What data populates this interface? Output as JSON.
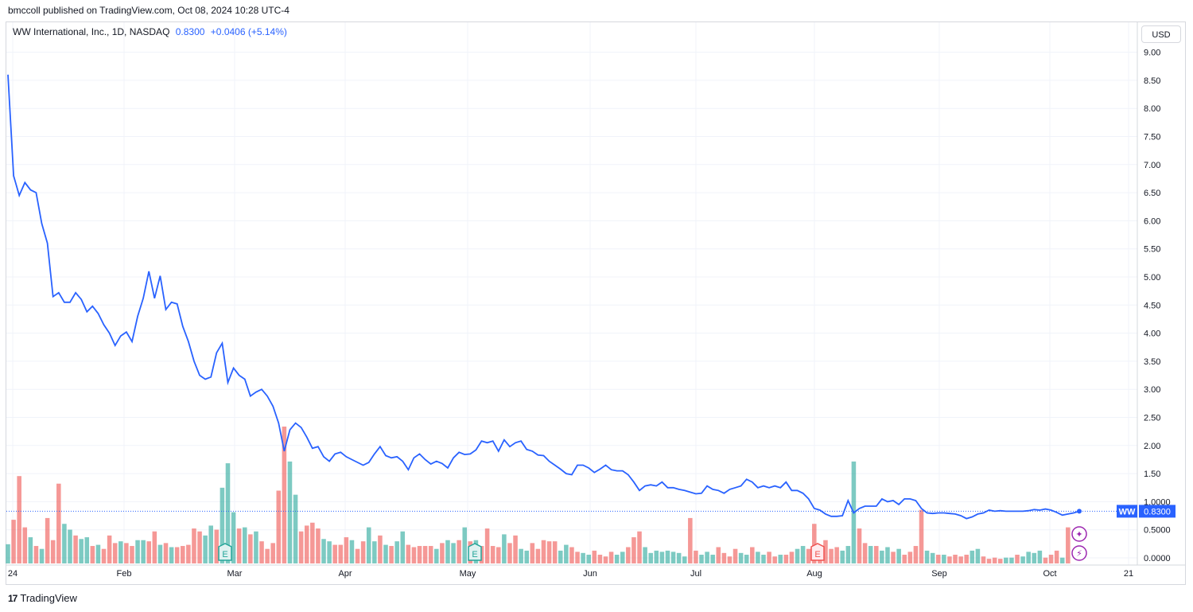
{
  "publisher_line": "bmccoll published on TradingView.com, Oct 08, 2024 10:28 UTC-4",
  "legend": {
    "symbol": "WW International, Inc., 1D, NASDAQ",
    "price": "0.8300",
    "change": "+0.0406 (+5.14%)"
  },
  "currency_button": "USD",
  "last_price_label": {
    "ticker": "WW",
    "price": "0.8300"
  },
  "footer_brand": "TradingView",
  "footer_logo": "17",
  "colors": {
    "line": "#2962ff",
    "vol_up": "#26a69a",
    "vol_down": "#ef5350",
    "grid": "#f0f3fa"
  },
  "chart_data": {
    "type": "line",
    "title": "",
    "xlabel": "",
    "ylabel": "",
    "ylim": [
      0,
      9.0
    ],
    "y_ticks": [
      "9.00",
      "8.50",
      "8.00",
      "7.50",
      "7.00",
      "6.50",
      "6.00",
      "5.50",
      "5.00",
      "4.50",
      "4.00",
      "3.50",
      "3.00",
      "2.50",
      "2.00",
      "1.50",
      "1.0000",
      "0.5000",
      "0.0000"
    ],
    "x_ticks": [
      "24",
      "Feb",
      "Mar",
      "Apr",
      "May",
      "Jun",
      "Jul",
      "Aug",
      "Sep",
      "Oct",
      "21"
    ],
    "series": [
      {
        "values": [
          8.6,
          6.8,
          6.45,
          6.68,
          6.55,
          6.5,
          5.95,
          5.6,
          4.65,
          4.72,
          4.55,
          4.55,
          4.72,
          4.6,
          4.38,
          4.48,
          4.35,
          4.15,
          4.0,
          3.78,
          3.95,
          4.02,
          3.85,
          4.3,
          4.62,
          5.1,
          4.62,
          5.02,
          4.42,
          4.55,
          4.52,
          4.12,
          3.85,
          3.5,
          3.25,
          3.18,
          3.22,
          3.65,
          3.82,
          3.12,
          3.38,
          3.25,
          3.18,
          2.88,
          2.95,
          3.0,
          2.88,
          2.7,
          2.4,
          1.9,
          2.28,
          2.4,
          2.32,
          2.15,
          1.95,
          1.98,
          1.8,
          1.72,
          1.85,
          1.88,
          1.8,
          1.75,
          1.7,
          1.65,
          1.7,
          1.85,
          1.98,
          1.82,
          1.78,
          1.8,
          1.72,
          1.57,
          1.78,
          1.85,
          1.75,
          1.67,
          1.72,
          1.68,
          1.6,
          1.78,
          1.88,
          1.84,
          1.85,
          1.92,
          2.08,
          2.05,
          2.08,
          1.9,
          2.1,
          1.98,
          2.05,
          2.08,
          1.93,
          1.9,
          1.83,
          1.82,
          1.72,
          1.65,
          1.58,
          1.5,
          1.48,
          1.65,
          1.65,
          1.6,
          1.52,
          1.58,
          1.65,
          1.57,
          1.55,
          1.55,
          1.48,
          1.35,
          1.2,
          1.28,
          1.3,
          1.28,
          1.35,
          1.25,
          1.25,
          1.22,
          1.2,
          1.17,
          1.14,
          1.15,
          1.28,
          1.22,
          1.2,
          1.15,
          1.22,
          1.25,
          1.28,
          1.4,
          1.35,
          1.25,
          1.28,
          1.25,
          1.28,
          1.25,
          1.35,
          1.2,
          1.2,
          1.15,
          1.05,
          0.88,
          0.85,
          0.78,
          0.74,
          0.74,
          0.75,
          1.02,
          0.8,
          0.88,
          0.92,
          0.92,
          0.92,
          1.05,
          1.0,
          1.02,
          0.95,
          1.05,
          1.05,
          1.02,
          0.88,
          0.8,
          0.79,
          0.8,
          0.8,
          0.79,
          0.78,
          0.75,
          0.7,
          0.73,
          0.78,
          0.8,
          0.85,
          0.83,
          0.84,
          0.83,
          0.83,
          0.83,
          0.83,
          0.84,
          0.86,
          0.85,
          0.87,
          0.85,
          0.81,
          0.76,
          0.78,
          0.8,
          0.83
        ]
      }
    ],
    "volume": [
      {
        "v": 0.33,
        "c": "up"
      },
      {
        "v": 0.75,
        "c": "down"
      },
      {
        "v": 1.5,
        "c": "down"
      },
      {
        "v": 0.62,
        "c": "down"
      },
      {
        "v": 0.45,
        "c": "up"
      },
      {
        "v": 0.3,
        "c": "down"
      },
      {
        "v": 0.25,
        "c": "up"
      },
      {
        "v": 0.78,
        "c": "down"
      },
      {
        "v": 0.4,
        "c": "down"
      },
      {
        "v": 1.37,
        "c": "down"
      },
      {
        "v": 0.68,
        "c": "up"
      },
      {
        "v": 0.58,
        "c": "up"
      },
      {
        "v": 0.48,
        "c": "down"
      },
      {
        "v": 0.42,
        "c": "up"
      },
      {
        "v": 0.45,
        "c": "up"
      },
      {
        "v": 0.3,
        "c": "down"
      },
      {
        "v": 0.32,
        "c": "up"
      },
      {
        "v": 0.25,
        "c": "down"
      },
      {
        "v": 0.48,
        "c": "down"
      },
      {
        "v": 0.35,
        "c": "down"
      },
      {
        "v": 0.38,
        "c": "up"
      },
      {
        "v": 0.35,
        "c": "down"
      },
      {
        "v": 0.3,
        "c": "down"
      },
      {
        "v": 0.4,
        "c": "up"
      },
      {
        "v": 0.4,
        "c": "up"
      },
      {
        "v": 0.38,
        "c": "down"
      },
      {
        "v": 0.55,
        "c": "down"
      },
      {
        "v": 0.32,
        "c": "up"
      },
      {
        "v": 0.35,
        "c": "down"
      },
      {
        "v": 0.28,
        "c": "up"
      },
      {
        "v": 0.28,
        "c": "down"
      },
      {
        "v": 0.3,
        "c": "down"
      },
      {
        "v": 0.32,
        "c": "down"
      },
      {
        "v": 0.6,
        "c": "down"
      },
      {
        "v": 0.55,
        "c": "down"
      },
      {
        "v": 0.48,
        "c": "up"
      },
      {
        "v": 0.65,
        "c": "up"
      },
      {
        "v": 0.58,
        "c": "down"
      },
      {
        "v": 1.3,
        "c": "up"
      },
      {
        "v": 1.72,
        "c": "up"
      },
      {
        "v": 0.88,
        "c": "up"
      },
      {
        "v": 0.6,
        "c": "down"
      },
      {
        "v": 0.62,
        "c": "up"
      },
      {
        "v": 0.5,
        "c": "down"
      },
      {
        "v": 0.55,
        "c": "up"
      },
      {
        "v": 0.38,
        "c": "down"
      },
      {
        "v": 0.25,
        "c": "down"
      },
      {
        "v": 0.35,
        "c": "down"
      },
      {
        "v": 1.25,
        "c": "down"
      },
      {
        "v": 2.35,
        "c": "down"
      },
      {
        "v": 1.75,
        "c": "up"
      },
      {
        "v": 1.18,
        "c": "up"
      },
      {
        "v": 0.55,
        "c": "down"
      },
      {
        "v": 0.65,
        "c": "down"
      },
      {
        "v": 0.7,
        "c": "down"
      },
      {
        "v": 0.6,
        "c": "down"
      },
      {
        "v": 0.42,
        "c": "up"
      },
      {
        "v": 0.38,
        "c": "up"
      },
      {
        "v": 0.32,
        "c": "down"
      },
      {
        "v": 0.32,
        "c": "down"
      },
      {
        "v": 0.45,
        "c": "down"
      },
      {
        "v": 0.4,
        "c": "up"
      },
      {
        "v": 0.25,
        "c": "down"
      },
      {
        "v": 0.38,
        "c": "down"
      },
      {
        "v": 0.62,
        "c": "up"
      },
      {
        "v": 0.38,
        "c": "up"
      },
      {
        "v": 0.48,
        "c": "down"
      },
      {
        "v": 0.32,
        "c": "up"
      },
      {
        "v": 0.3,
        "c": "down"
      },
      {
        "v": 0.38,
        "c": "up"
      },
      {
        "v": 0.55,
        "c": "up"
      },
      {
        "v": 0.32,
        "c": "down"
      },
      {
        "v": 0.28,
        "c": "down"
      },
      {
        "v": 0.3,
        "c": "down"
      },
      {
        "v": 0.3,
        "c": "down"
      },
      {
        "v": 0.3,
        "c": "down"
      },
      {
        "v": 0.25,
        "c": "up"
      },
      {
        "v": 0.35,
        "c": "down"
      },
      {
        "v": 0.4,
        "c": "up"
      },
      {
        "v": 0.35,
        "c": "up"
      },
      {
        "v": 0.4,
        "c": "down"
      },
      {
        "v": 0.62,
        "c": "up"
      },
      {
        "v": 0.38,
        "c": "down"
      },
      {
        "v": 0.4,
        "c": "up"
      },
      {
        "v": 0.3,
        "c": "down"
      },
      {
        "v": 0.6,
        "c": "down"
      },
      {
        "v": 0.3,
        "c": "down"
      },
      {
        "v": 0.28,
        "c": "down"
      },
      {
        "v": 0.5,
        "c": "up"
      },
      {
        "v": 0.35,
        "c": "down"
      },
      {
        "v": 0.48,
        "c": "down"
      },
      {
        "v": 0.25,
        "c": "up"
      },
      {
        "v": 0.22,
        "c": "up"
      },
      {
        "v": 0.35,
        "c": "down"
      },
      {
        "v": 0.25,
        "c": "down"
      },
      {
        "v": 0.4,
        "c": "down"
      },
      {
        "v": 0.38,
        "c": "down"
      },
      {
        "v": 0.38,
        "c": "down"
      },
      {
        "v": 0.22,
        "c": "up"
      },
      {
        "v": 0.32,
        "c": "up"
      },
      {
        "v": 0.28,
        "c": "down"
      },
      {
        "v": 0.2,
        "c": "down"
      },
      {
        "v": 0.18,
        "c": "up"
      },
      {
        "v": 0.15,
        "c": "up"
      },
      {
        "v": 0.22,
        "c": "down"
      },
      {
        "v": 0.15,
        "c": "down"
      },
      {
        "v": 0.12,
        "c": "down"
      },
      {
        "v": 0.2,
        "c": "down"
      },
      {
        "v": 0.15,
        "c": "up"
      },
      {
        "v": 0.2,
        "c": "up"
      },
      {
        "v": 0.28,
        "c": "down"
      },
      {
        "v": 0.45,
        "c": "down"
      },
      {
        "v": 0.55,
        "c": "down"
      },
      {
        "v": 0.28,
        "c": "up"
      },
      {
        "v": 0.18,
        "c": "up"
      },
      {
        "v": 0.22,
        "c": "up"
      },
      {
        "v": 0.2,
        "c": "up"
      },
      {
        "v": 0.22,
        "c": "up"
      },
      {
        "v": 0.2,
        "c": "up"
      },
      {
        "v": 0.18,
        "c": "up"
      },
      {
        "v": 0.12,
        "c": "up"
      },
      {
        "v": 0.78,
        "c": "down"
      },
      {
        "v": 0.22,
        "c": "down"
      },
      {
        "v": 0.15,
        "c": "up"
      },
      {
        "v": 0.2,
        "c": "up"
      },
      {
        "v": 0.15,
        "c": "up"
      },
      {
        "v": 0.28,
        "c": "down"
      },
      {
        "v": 0.18,
        "c": "down"
      },
      {
        "v": 0.12,
        "c": "down"
      },
      {
        "v": 0.25,
        "c": "down"
      },
      {
        "v": 0.18,
        "c": "up"
      },
      {
        "v": 0.15,
        "c": "up"
      },
      {
        "v": 0.28,
        "c": "down"
      },
      {
        "v": 0.2,
        "c": "up"
      },
      {
        "v": 0.15,
        "c": "up"
      },
      {
        "v": 0.2,
        "c": "down"
      },
      {
        "v": 0.12,
        "c": "down"
      },
      {
        "v": 0.15,
        "c": "up"
      },
      {
        "v": 0.15,
        "c": "down"
      },
      {
        "v": 0.2,
        "c": "down"
      },
      {
        "v": 0.25,
        "c": "up"
      },
      {
        "v": 0.3,
        "c": "up"
      },
      {
        "v": 0.25,
        "c": "down"
      },
      {
        "v": 0.68,
        "c": "down"
      },
      {
        "v": 0.3,
        "c": "down"
      },
      {
        "v": 0.4,
        "c": "down"
      },
      {
        "v": 0.25,
        "c": "down"
      },
      {
        "v": 0.28,
        "c": "down"
      },
      {
        "v": 0.22,
        "c": "up"
      },
      {
        "v": 0.3,
        "c": "up"
      },
      {
        "v": 1.75,
        "c": "up"
      },
      {
        "v": 0.6,
        "c": "down"
      },
      {
        "v": 0.35,
        "c": "down"
      },
      {
        "v": 0.3,
        "c": "up"
      },
      {
        "v": 0.3,
        "c": "down"
      },
      {
        "v": 0.22,
        "c": "up"
      },
      {
        "v": 0.28,
        "c": "up"
      },
      {
        "v": 0.2,
        "c": "down"
      },
      {
        "v": 0.25,
        "c": "up"
      },
      {
        "v": 0.15,
        "c": "down"
      },
      {
        "v": 0.2,
        "c": "down"
      },
      {
        "v": 0.3,
        "c": "down"
      },
      {
        "v": 0.92,
        "c": "down"
      },
      {
        "v": 0.22,
        "c": "up"
      },
      {
        "v": 0.18,
        "c": "up"
      },
      {
        "v": 0.15,
        "c": "down"
      },
      {
        "v": 0.15,
        "c": "up"
      },
      {
        "v": 0.12,
        "c": "down"
      },
      {
        "v": 0.15,
        "c": "down"
      },
      {
        "v": 0.12,
        "c": "down"
      },
      {
        "v": 0.15,
        "c": "down"
      },
      {
        "v": 0.22,
        "c": "up"
      },
      {
        "v": 0.25,
        "c": "up"
      },
      {
        "v": 0.12,
        "c": "down"
      },
      {
        "v": 0.08,
        "c": "down"
      },
      {
        "v": 0.1,
        "c": "down"
      },
      {
        "v": 0.08,
        "c": "down"
      },
      {
        "v": 0.1,
        "c": "up"
      },
      {
        "v": 0.1,
        "c": "up"
      },
      {
        "v": 0.15,
        "c": "down"
      },
      {
        "v": 0.12,
        "c": "up"
      },
      {
        "v": 0.2,
        "c": "up"
      },
      {
        "v": 0.18,
        "c": "up"
      },
      {
        "v": 0.22,
        "c": "up"
      },
      {
        "v": 0.1,
        "c": "down"
      },
      {
        "v": 0.15,
        "c": "down"
      },
      {
        "v": 0.22,
        "c": "down"
      },
      {
        "v": 0.1,
        "c": "up"
      },
      {
        "v": 0.62,
        "c": "down"
      }
    ],
    "grid": true,
    "reference_line": 0.83
  }
}
